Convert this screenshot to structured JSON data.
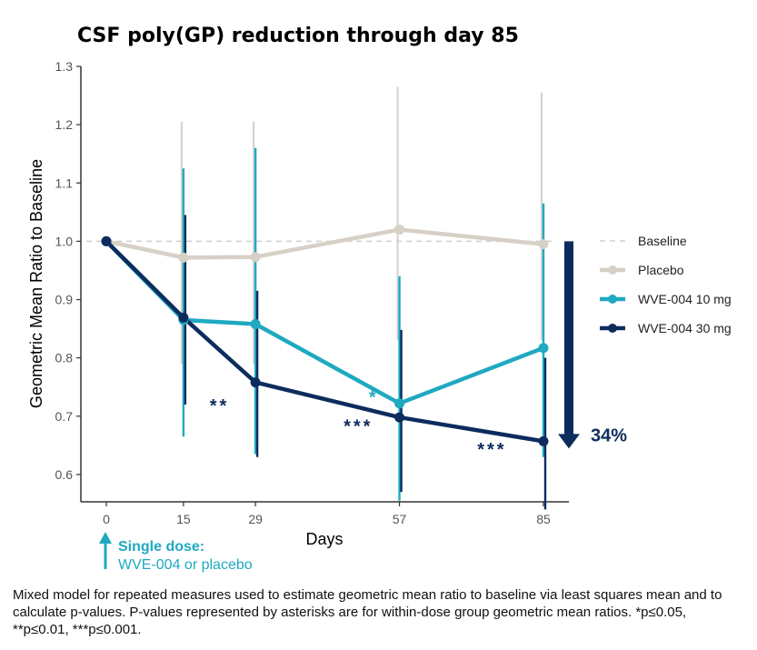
{
  "chart_data": {
    "type": "line",
    "title": "CSF poly(GP) reduction through day 85",
    "xlabel": "Days",
    "ylabel": "Geometric Mean Ratio to Baseline",
    "x": [
      0,
      15,
      29,
      57,
      85
    ],
    "x_ticks": [
      "0",
      "15",
      "29",
      "57",
      "85"
    ],
    "ylim": [
      0.55,
      1.3
    ],
    "y_ticks": [
      0.6,
      0.7,
      0.8,
      0.9,
      1.0,
      1.1,
      1.2,
      1.3
    ],
    "y_tick_labels": [
      "0.6",
      "0.7",
      "0.8",
      "0.9",
      "1.0",
      "1.1",
      "1.2",
      "1.3"
    ],
    "baseline": {
      "name": "Baseline",
      "value": 1.0,
      "color": "#cfcfcf"
    },
    "series": [
      {
        "name": "Placebo",
        "color": "#d6d0c6",
        "values": [
          1.0,
          0.972,
          0.973,
          1.02,
          0.995
        ],
        "err_low": [
          1.0,
          0.79,
          0.79,
          0.83,
          0.83
        ],
        "err_high": [
          1.0,
          1.205,
          1.205,
          1.265,
          1.255
        ]
      },
      {
        "name": "WVE-004 10 mg",
        "color": "#1fa9c1",
        "values": [
          1.0,
          0.865,
          0.858,
          0.722,
          0.817
        ],
        "err_low": [
          1.0,
          0.665,
          0.635,
          0.555,
          0.63
        ],
        "err_high": [
          1.0,
          1.125,
          1.16,
          0.94,
          1.065
        ]
      },
      {
        "name": "WVE-004 30 mg",
        "color": "#0d2c5e",
        "values": [
          1.0,
          0.869,
          0.758,
          0.698,
          0.657
        ],
        "err_low": [
          1.0,
          0.72,
          0.63,
          0.57,
          0.54
        ],
        "err_high": [
          1.0,
          1.045,
          0.915,
          0.848,
          0.8
        ]
      }
    ],
    "legend": [
      "Baseline",
      "Placebo",
      "WVE-004 10 mg",
      "WVE-004 30 mg"
    ],
    "annotations": [
      {
        "text": "**",
        "x": 22,
        "y": 0.72,
        "color": "#0d2c5e"
      },
      {
        "text": "*",
        "x": 52,
        "y": 0.735,
        "color": "#1fa9c1"
      },
      {
        "text": "***",
        "x": 49,
        "y": 0.685,
        "color": "#0d2c5e"
      },
      {
        "text": "***",
        "x": 75,
        "y": 0.645,
        "color": "#0d2c5e"
      }
    ],
    "reduction": {
      "text": "34%",
      "from": 1.0,
      "to": 0.657
    }
  },
  "dose_note": {
    "title": "Single dose:",
    "subtitle": "WVE-004 or placebo"
  },
  "footnote": "Mixed model for repeated measures used to estimate geometric mean ratio to baseline via least squares mean and to calculate p-values.  P-values represented by asterisks are for within-dose group geometric mean ratios. *p≤0.05, **p≤0.01, ***p≤0.001."
}
